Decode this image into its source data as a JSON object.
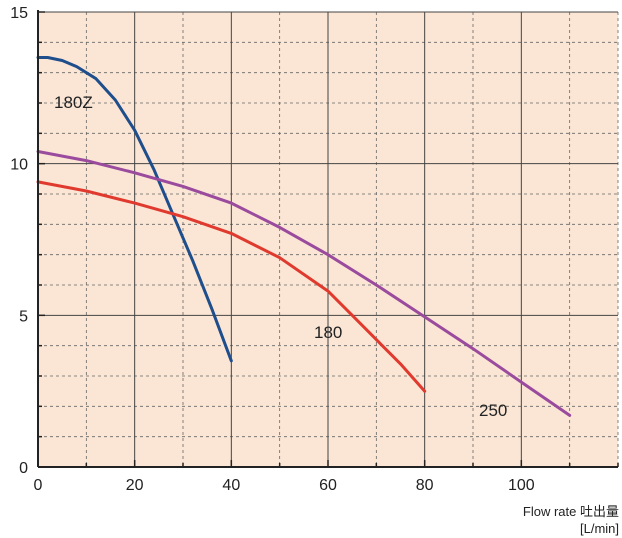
{
  "chart_data": {
    "type": "line",
    "xlabel": "Flow rate 吐出量",
    "xunit": "[L/min]",
    "ylabel": "",
    "xlim": [
      0,
      120
    ],
    "ylim": [
      0,
      15
    ],
    "x_major_ticks": [
      0,
      20,
      40,
      60,
      80,
      100
    ],
    "x_minor_step": 10,
    "y_major_ticks": [
      0,
      5,
      10,
      15
    ],
    "y_minor_step": 1,
    "grid": true,
    "colors": {
      "background": "#fbe6d5",
      "major_grid": "#444444",
      "minor_grid": "#666666",
      "axis": "#222222"
    },
    "series": [
      {
        "name": "180Z",
        "color": "#1f4e8c",
        "points": [
          [
            0,
            13.5
          ],
          [
            2,
            13.5
          ],
          [
            5,
            13.4
          ],
          [
            8,
            13.2
          ],
          [
            12,
            12.8
          ],
          [
            16,
            12.1
          ],
          [
            20,
            11.1
          ],
          [
            24,
            9.8
          ],
          [
            28,
            8.3
          ],
          [
            32,
            6.8
          ],
          [
            36,
            5.2
          ],
          [
            40,
            3.5
          ]
        ]
      },
      {
        "name": "180",
        "color": "#e03a2f",
        "points": [
          [
            0,
            9.4
          ],
          [
            10,
            9.1
          ],
          [
            20,
            8.7
          ],
          [
            30,
            8.25
          ],
          [
            40,
            7.7
          ],
          [
            50,
            6.9
          ],
          [
            60,
            5.8
          ],
          [
            65,
            5.0
          ],
          [
            70,
            4.2
          ],
          [
            75,
            3.4
          ],
          [
            80,
            2.5
          ]
        ]
      },
      {
        "name": "250",
        "color": "#9b4b9e",
        "points": [
          [
            0,
            10.4
          ],
          [
            10,
            10.1
          ],
          [
            20,
            9.7
          ],
          [
            30,
            9.25
          ],
          [
            40,
            8.7
          ],
          [
            50,
            7.9
          ],
          [
            60,
            7.0
          ],
          [
            70,
            6.0
          ],
          [
            80,
            4.95
          ],
          [
            90,
            3.9
          ],
          [
            100,
            2.8
          ],
          [
            110,
            1.7
          ]
        ]
      }
    ]
  },
  "series_labels": {
    "s180z": "180Z",
    "s180": "180",
    "s250": "250"
  }
}
